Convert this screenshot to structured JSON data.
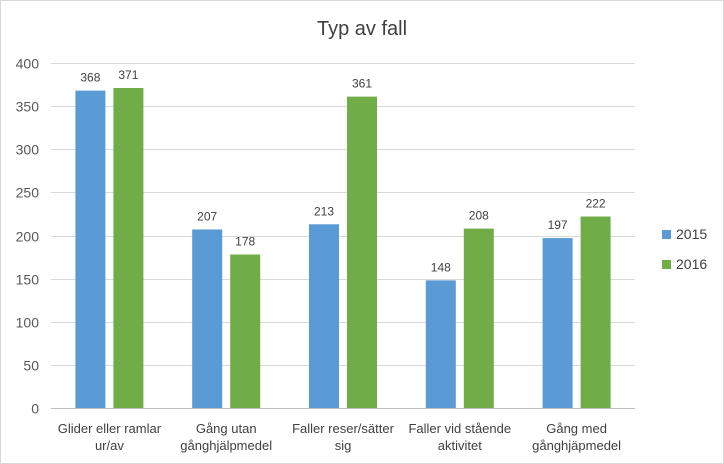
{
  "chart_data": {
    "type": "bar",
    "title": "Typ av fall",
    "categories": [
      [
        "Glider eller ramlar",
        "ur/av"
      ],
      [
        "Gång utan",
        "gånghjälpmedel"
      ],
      [
        "Faller reser/sätter",
        "sig"
      ],
      [
        "Faller vid stående",
        "aktivitet"
      ],
      [
        "Gång med",
        "gånghjäpmedel"
      ]
    ],
    "series": [
      {
        "name": "2015",
        "color": "#5b9bd5",
        "values": [
          368,
          207,
          213,
          148,
          197
        ]
      },
      {
        "name": "2016",
        "color": "#70ad47",
        "values": [
          371,
          178,
          361,
          208,
          222
        ]
      }
    ],
    "ylim": [
      0,
      400
    ],
    "yticks": [
      0,
      50,
      100,
      150,
      200,
      250,
      300,
      350,
      400
    ],
    "grid": true,
    "legend": "right",
    "xlabel": "",
    "ylabel": ""
  }
}
